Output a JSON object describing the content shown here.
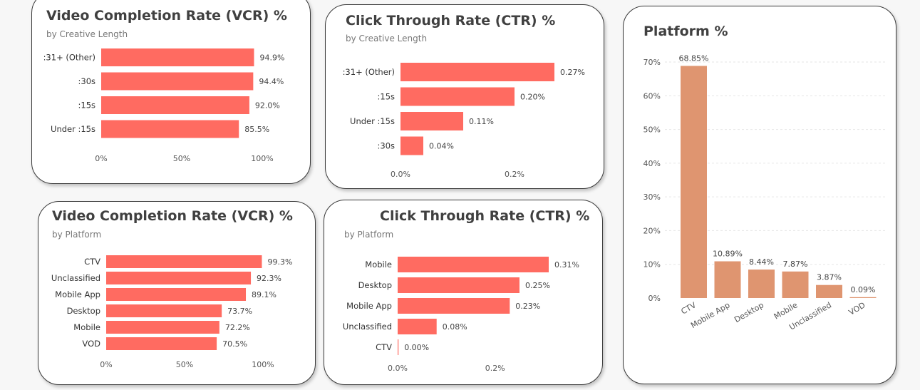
{
  "colors": {
    "bar": "#ff6b61",
    "platform_bar": "#df9570",
    "grid": "#e6e6e6"
  },
  "panels": [
    {
      "title": "Video Completion Rate (VCR) %",
      "subtitle": "by Creative Length"
    },
    {
      "title": "Click Through Rate (CTR) %",
      "subtitle": "by Creative Length"
    },
    {
      "title": "Platform %",
      "subtitle": ""
    },
    {
      "title": "Video Completion Rate (VCR) %",
      "subtitle": "by Platform"
    },
    {
      "title": "Click Through Rate (CTR) %",
      "subtitle": "by Platform"
    }
  ],
  "chart_data": [
    {
      "type": "bar",
      "orientation": "horizontal",
      "title": "Video Completion Rate (VCR) %",
      "subtitle": "by Creative Length",
      "categories": [
        ":31+ (Other)",
        ":30s",
        ":15s",
        "Under :15s"
      ],
      "values": [
        94.9,
        94.4,
        92.0,
        85.5
      ],
      "value_labels": [
        "94.9%",
        "94.4%",
        "92.0%",
        "85.5%"
      ],
      "xlim": [
        0,
        100
      ],
      "xticks": [
        0,
        50,
        100
      ],
      "xtick_labels": [
        "0%",
        "50%",
        "100%"
      ]
    },
    {
      "type": "bar",
      "orientation": "horizontal",
      "title": "Click Through Rate (CTR) %",
      "subtitle": "by Creative Length",
      "categories": [
        ":31+ (Other)",
        ":15s",
        "Under :15s",
        ":30s"
      ],
      "values": [
        0.27,
        0.2,
        0.11,
        0.04
      ],
      "value_labels": [
        "0.27%",
        "0.20%",
        "0.11%",
        "0.04%"
      ],
      "xlim": [
        0,
        0.27
      ],
      "xticks": [
        0,
        0.2
      ],
      "xtick_labels": [
        "0.0%",
        "0.2%"
      ]
    },
    {
      "type": "bar",
      "orientation": "vertical",
      "title": "Platform %",
      "categories": [
        "CTV",
        "Mobile App",
        "Desktop",
        "Mobile",
        "Unclassified",
        "VOD"
      ],
      "values": [
        68.85,
        10.89,
        8.44,
        7.87,
        3.87,
        0.09
      ],
      "value_labels": [
        "68.85%",
        "10.89%",
        "8.44%",
        "7.87%",
        "3.87%",
        "0.09%"
      ],
      "ylim": [
        0,
        70
      ],
      "yticks": [
        0,
        10,
        20,
        30,
        40,
        50,
        60,
        70
      ],
      "ytick_labels": [
        "0%",
        "10%",
        "20%",
        "30%",
        "40%",
        "50%",
        "60%",
        "70%"
      ],
      "grid": true
    },
    {
      "type": "bar",
      "orientation": "horizontal",
      "title": "Video Completion Rate (VCR) %",
      "subtitle": "by Platform",
      "categories": [
        "CTV",
        "Unclassified",
        "Mobile App",
        "Desktop",
        "Mobile",
        "VOD"
      ],
      "values": [
        99.3,
        92.3,
        89.1,
        73.7,
        72.2,
        70.5
      ],
      "value_labels": [
        "99.3%",
        "92.3%",
        "89.1%",
        "73.7%",
        "72.2%",
        "70.5%"
      ],
      "xlim": [
        0,
        100
      ],
      "xticks": [
        0,
        50,
        100
      ],
      "xtick_labels": [
        "0%",
        "50%",
        "100%"
      ]
    },
    {
      "type": "bar",
      "orientation": "horizontal",
      "title": "Click Through Rate (CTR) %",
      "subtitle": "by Platform",
      "categories": [
        "Mobile",
        "Desktop",
        "Mobile App",
        "Unclassified",
        "CTV"
      ],
      "values": [
        0.31,
        0.25,
        0.23,
        0.08,
        0.0
      ],
      "value_labels": [
        "0.31%",
        "0.25%",
        "0.23%",
        "0.08%",
        "0.00%"
      ],
      "xlim": [
        0,
        0.31
      ],
      "xticks": [
        0,
        0.2
      ],
      "xtick_labels": [
        "0.0%",
        "0.2%"
      ]
    }
  ]
}
